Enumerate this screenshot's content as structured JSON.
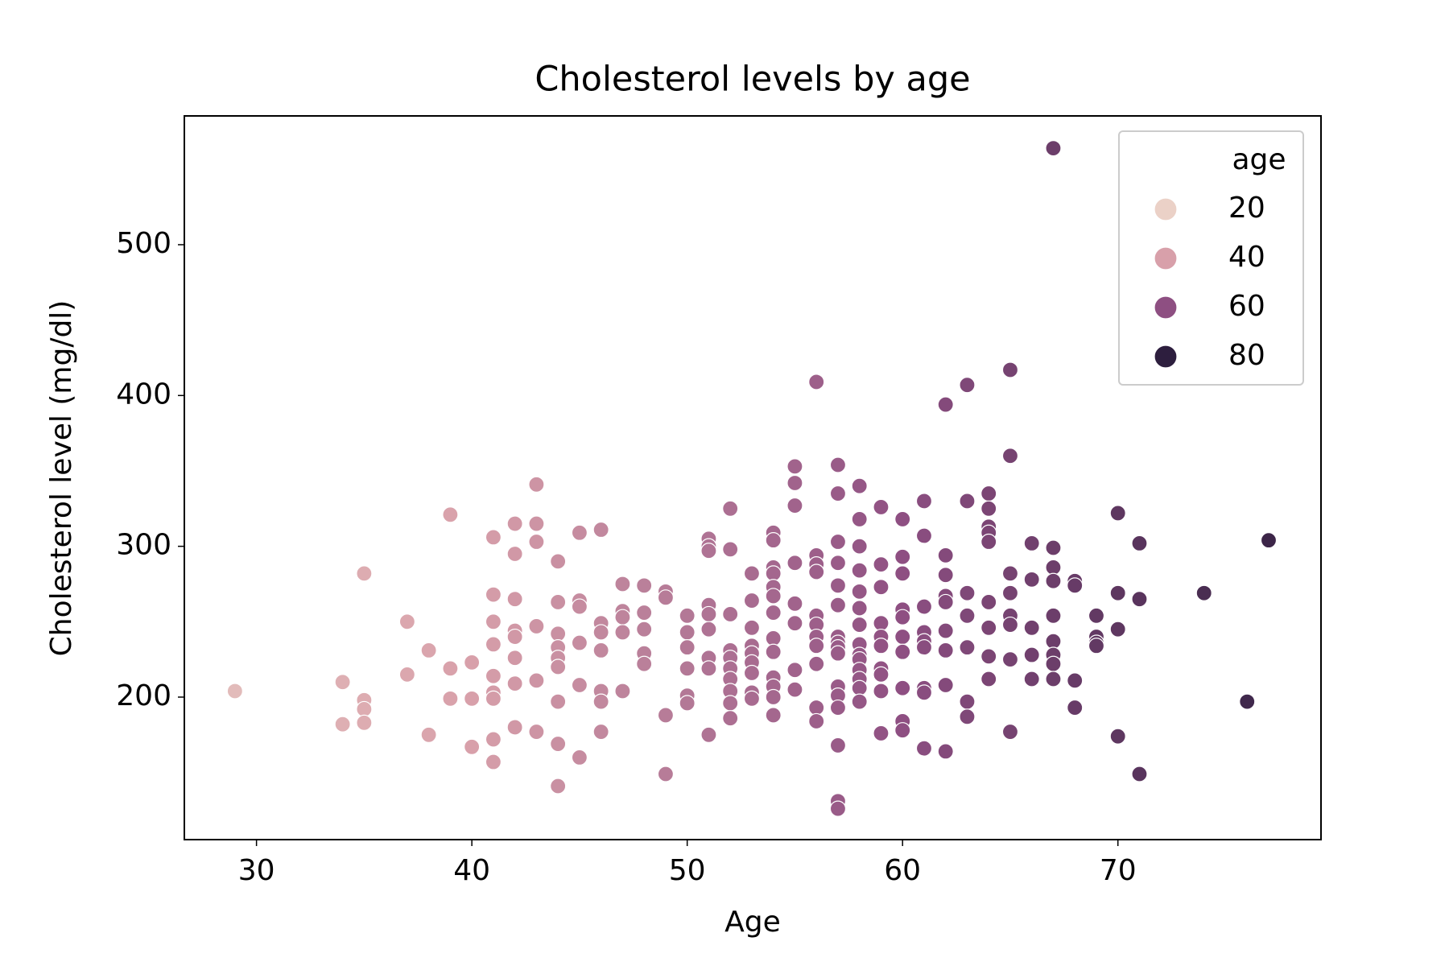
{
  "chart_data": {
    "type": "scatter",
    "title": "Cholesterol levels by age",
    "x_label": "Age",
    "y_label": "Cholesterol level (mg/dl)",
    "xlim": [
      26.65,
      79.43
    ],
    "ylim": [
      105.5,
      585.4
    ],
    "xticks": [
      30,
      40,
      50,
      60,
      70
    ],
    "yticks": [
      200,
      300,
      400,
      500
    ],
    "grid": false,
    "legend_position": "upper right",
    "legend": {
      "title": "age",
      "entries": [
        {
          "label": 20,
          "color": "#ebd1c7"
        },
        {
          "label": 40,
          "color": "#d8a0aa"
        },
        {
          "label": 60,
          "color": "#8e4f82"
        },
        {
          "label": 80,
          "color": "#2d1e3e"
        }
      ]
    },
    "x": [
      29,
      34,
      34,
      35,
      35,
      35,
      35,
      37,
      37,
      38,
      38,
      39,
      39,
      39,
      40,
      40,
      40,
      41,
      41,
      41,
      41,
      41,
      41,
      41,
      41,
      41,
      42,
      42,
      42,
      42,
      42,
      42,
      42,
      42,
      43,
      43,
      43,
      43,
      43,
      43,
      44,
      44,
      44,
      44,
      44,
      44,
      44,
      44,
      44,
      45,
      45,
      45,
      45,
      45,
      45,
      46,
      46,
      46,
      46,
      46,
      46,
      46,
      47,
      47,
      47,
      47,
      47,
      48,
      48,
      48,
      48,
      48,
      49,
      49,
      49,
      49,
      50,
      50,
      50,
      50,
      50,
      50,
      51,
      51,
      51,
      51,
      51,
      51,
      51,
      51,
      51,
      52,
      52,
      52,
      52,
      52,
      52,
      52,
      52,
      52,
      52,
      53,
      53,
      53,
      53,
      53,
      53,
      53,
      53,
      53,
      54,
      54,
      54,
      54,
      54,
      54,
      54,
      54,
      54,
      54,
      54,
      54,
      54,
      55,
      55,
      55,
      55,
      55,
      55,
      55,
      55,
      56,
      56,
      56,
      56,
      56,
      56,
      56,
      56,
      56,
      56,
      56,
      57,
      57,
      57,
      57,
      57,
      57,
      57,
      57,
      57,
      57,
      57,
      57,
      57,
      57,
      57,
      57,
      58,
      58,
      58,
      58,
      58,
      58,
      58,
      58,
      58,
      58,
      58,
      58,
      58,
      58,
      59,
      59,
      59,
      59,
      59,
      59,
      59,
      59,
      59,
      59,
      60,
      60,
      60,
      60,
      60,
      60,
      60,
      60,
      60,
      60,
      61,
      61,
      61,
      61,
      61,
      61,
      61,
      61,
      61,
      62,
      62,
      62,
      62,
      62,
      62,
      62,
      62,
      62,
      63,
      63,
      63,
      63,
      63,
      63,
      63,
      64,
      64,
      64,
      64,
      64,
      64,
      64,
      64,
      64,
      65,
      65,
      65,
      65,
      65,
      65,
      65,
      65,
      66,
      66,
      66,
      66,
      66,
      67,
      67,
      67,
      67,
      67,
      67,
      67,
      67,
      67,
      68,
      68,
      68,
      68,
      69,
      69,
      69,
      69,
      70,
      70,
      70,
      70,
      71,
      71,
      71,
      74,
      76,
      77
    ],
    "y": [
      204,
      210,
      182,
      282,
      198,
      192,
      183,
      250,
      215,
      231,
      175,
      321,
      219,
      199,
      223,
      199,
      167,
      306,
      268,
      250,
      235,
      214,
      203,
      199,
      172,
      157,
      315,
      295,
      265,
      244,
      240,
      226,
      209,
      180,
      341,
      315,
      303,
      247,
      211,
      177,
      290,
      263,
      242,
      233,
      226,
      220,
      197,
      169,
      141,
      309,
      264,
      260,
      236,
      208,
      160,
      311,
      249,
      243,
      231,
      204,
      197,
      177,
      275,
      257,
      253,
      243,
      204,
      274,
      256,
      245,
      229,
      222,
      270,
      266,
      188,
      149,
      254,
      243,
      233,
      219,
      201,
      196,
      305,
      300,
      297,
      261,
      255,
      245,
      226,
      219,
      175,
      325,
      298,
      255,
      231,
      226,
      219,
      212,
      204,
      196,
      186,
      282,
      264,
      246,
      234,
      229,
      223,
      216,
      203,
      199,
      309,
      304,
      286,
      282,
      273,
      267,
      256,
      239,
      230,
      213,
      207,
      200,
      188,
      353,
      342,
      327,
      289,
      262,
      249,
      218,
      205,
      409,
      294,
      288,
      283,
      254,
      248,
      240,
      234,
      222,
      193,
      184,
      354,
      335,
      303,
      289,
      274,
      261,
      240,
      236,
      233,
      229,
      207,
      201,
      193,
      168,
      131,
      126,
      340,
      318,
      300,
      284,
      270,
      259,
      248,
      235,
      228,
      225,
      218,
      212,
      206,
      197,
      326,
      288,
      273,
      249,
      240,
      234,
      219,
      215,
      204,
      176,
      318,
      293,
      282,
      258,
      253,
      240,
      230,
      206,
      184,
      178,
      330,
      307,
      260,
      243,
      237,
      233,
      206,
      203,
      166,
      394,
      294,
      281,
      267,
      263,
      244,
      231,
      208,
      164,
      407,
      330,
      269,
      254,
      233,
      197,
      187,
      335,
      325,
      313,
      309,
      303,
      263,
      246,
      227,
      212,
      417,
      360,
      282,
      269,
      254,
      248,
      225,
      177,
      302,
      278,
      246,
      228,
      212,
      564,
      299,
      286,
      277,
      254,
      237,
      228,
      222,
      212,
      277,
      274,
      211,
      193,
      254,
      240,
      236,
      234,
      322,
      269,
      245,
      174,
      302,
      265,
      149,
      269,
      197,
      304
    ]
  }
}
